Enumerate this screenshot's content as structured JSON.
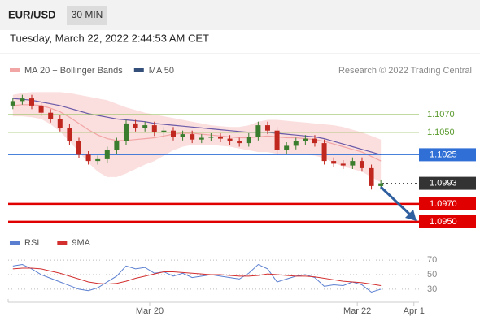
{
  "header": {
    "symbol": "EUR/USD",
    "interval": "30 MIN",
    "timestamp": "Tuesday, March 22, 2022 2:44:53 AM CET"
  },
  "chart_data": [
    {
      "type": "candlestick",
      "source": "Research © 2022 Trading Central",
      "up_color": "#3b7d2e",
      "down_color": "#c0271f",
      "xlim": [
        -0.5,
        43.9
      ],
      "ylim": [
        1.0939,
        1.1109
      ],
      "open": [
        1.108,
        1.1085,
        1.1088,
        1.108,
        1.1072,
        1.1065,
        1.1055,
        1.104,
        1.1025,
        1.1018,
        1.102,
        1.103,
        1.104,
        1.106,
        1.1055,
        1.1058,
        1.105,
        1.1052,
        1.1045,
        1.1048,
        1.1042,
        1.1044,
        1.1045,
        1.1043,
        1.104,
        1.1038,
        1.1045,
        1.1058,
        1.1052,
        1.103,
        1.1035,
        1.104,
        1.1043,
        1.1038,
        1.1018,
        1.1015,
        1.1013,
        1.1018,
        1.101,
        1.099
      ],
      "high": [
        1.1089,
        1.1092,
        1.1092,
        1.1084,
        1.1076,
        1.1069,
        1.1059,
        1.1044,
        1.1029,
        1.1024,
        1.1034,
        1.1044,
        1.1064,
        1.1064,
        1.1062,
        1.1062,
        1.1056,
        1.1056,
        1.1052,
        1.1052,
        1.1048,
        1.1049,
        1.1049,
        1.1047,
        1.1044,
        1.1049,
        1.1062,
        1.1062,
        1.1056,
        1.1039,
        1.1044,
        1.1047,
        1.1047,
        1.1042,
        1.1022,
        1.1019,
        1.1022,
        1.1022,
        1.1014,
        1.0997
      ],
      "low": [
        1.1076,
        1.1081,
        1.1076,
        1.1068,
        1.1061,
        1.1051,
        1.1036,
        1.1021,
        1.1014,
        1.1014,
        1.1016,
        1.1026,
        1.1036,
        1.1051,
        1.1051,
        1.1046,
        1.1046,
        1.1041,
        1.1041,
        1.1038,
        1.1038,
        1.104,
        1.1039,
        1.1036,
        1.1034,
        1.1034,
        1.1041,
        1.1048,
        1.1026,
        1.1026,
        1.1031,
        1.1036,
        1.1034,
        1.1014,
        1.1011,
        1.1009,
        1.1009,
        1.1006,
        1.0986,
        1.0986
      ],
      "close": [
        1.1085,
        1.1088,
        1.108,
        1.1072,
        1.1065,
        1.1055,
        1.104,
        1.1025,
        1.1018,
        1.102,
        1.103,
        1.104,
        1.106,
        1.1055,
        1.1058,
        1.105,
        1.1052,
        1.1045,
        1.1048,
        1.1042,
        1.1044,
        1.1045,
        1.1043,
        1.104,
        1.1038,
        1.1045,
        1.1058,
        1.1052,
        1.103,
        1.1035,
        1.104,
        1.1043,
        1.1038,
        1.1018,
        1.1015,
        1.1013,
        1.1018,
        1.101,
        1.099,
        1.0993
      ],
      "series": [
        {
          "name": "MA 20 + Bollinger Bands",
          "color": "#f2a5a5",
          "band_color": "#fbdede",
          "values": [
            1.108,
            1.1081,
            1.1081,
            1.108,
            1.1077,
            1.1073,
            1.1067,
            1.106,
            1.1053,
            1.1047,
            1.1043,
            1.1041,
            1.1041,
            1.1042,
            1.1043,
            1.1044,
            1.1046,
            1.1048,
            1.1049,
            1.1049,
            1.1048,
            1.1047,
            1.1046,
            1.1045,
            1.1044,
            1.1044,
            1.1045,
            1.1046,
            1.1045,
            1.1044,
            1.1044,
            1.1043,
            1.1042,
            1.104,
            1.1037,
            1.1034,
            1.1031,
            1.1028,
            1.1023,
            1.1018
          ],
          "upper": [
            1.1092,
            1.1094,
            1.1095,
            1.1095,
            1.1095,
            1.1095,
            1.1094,
            1.1092,
            1.109,
            1.1088,
            1.1086,
            1.1082,
            1.1078,
            1.1075,
            1.1072,
            1.107,
            1.1068,
            1.1066,
            1.1064,
            1.1062,
            1.106,
            1.1058,
            1.1057,
            1.1056,
            1.1056,
            1.1058,
            1.1062,
            1.1064,
            1.1064,
            1.1063,
            1.1062,
            1.1061,
            1.106,
            1.1059,
            1.1058,
            1.1056,
            1.1053,
            1.105,
            1.1046,
            1.1042
          ],
          "lower": [
            1.1068,
            1.1068,
            1.1067,
            1.1065,
            1.1059,
            1.1051,
            1.104,
            1.1028,
            1.1016,
            1.1006,
            1.1,
            1.1,
            1.1004,
            1.1009,
            1.1014,
            1.1018,
            1.1024,
            1.103,
            1.1034,
            1.1036,
            1.1036,
            1.1036,
            1.1035,
            1.1034,
            1.1032,
            1.103,
            1.1028,
            1.1028,
            1.1026,
            1.1025,
            1.1026,
            1.1025,
            1.1024,
            1.1021,
            1.1016,
            1.1012,
            1.1009,
            1.1006,
            1.1,
            1.0994
          ]
        },
        {
          "name": "MA 50",
          "color": "#6a5aa8",
          "legend_color": "#34507a",
          "values": [
            1.1088,
            1.1087,
            1.1086,
            1.1084,
            1.1082,
            1.108,
            1.1077,
            1.1074,
            1.1071,
            1.1069,
            1.1067,
            1.1065,
            1.1064,
            1.1063,
            1.1062,
            1.106,
            1.1059,
            1.1058,
            1.1057,
            1.1056,
            1.1055,
            1.1054,
            1.1053,
            1.1052,
            1.1051,
            1.105,
            1.105,
            1.105,
            1.1049,
            1.1048,
            1.1047,
            1.1046,
            1.1045,
            1.1043,
            1.104,
            1.1037,
            1.1034,
            1.1031,
            1.1028,
            1.1025
          ]
        }
      ],
      "levels": [
        {
          "value": 1.107,
          "label": "1.1070",
          "color": "#9cc46a",
          "style": "line",
          "badge": false
        },
        {
          "value": 1.105,
          "label": "1.1050",
          "color": "#9cc46a",
          "style": "line",
          "badge": false
        },
        {
          "value": 1.1025,
          "label": "1.1025",
          "color": "#2f6fd6",
          "style": "line",
          "badge": true
        },
        {
          "value": 1.0993,
          "label": "1.0993",
          "color": "#333333",
          "style": "dotted",
          "badge": true
        },
        {
          "value": 1.097,
          "label": "1.0970",
          "color": "#e10000",
          "style": "thick",
          "badge": true
        },
        {
          "value": 1.095,
          "label": "1.0950",
          "color": "#e10000",
          "style": "thick",
          "badge": true
        }
      ]
    },
    {
      "type": "line",
      "xlim": [
        -0.5,
        43.9
      ],
      "ylim": [
        12,
        87
      ],
      "yticks": [
        30,
        50,
        70
      ],
      "xticks": [
        {
          "value": 14.5,
          "label": "Mar 20"
        },
        {
          "value": 36.5,
          "label": "Mar 22"
        },
        {
          "value": 42.5,
          "label": "Apr 1"
        }
      ],
      "series": [
        {
          "name": "RSI",
          "color": "#5b7fd0",
          "values": [
            62,
            64,
            58,
            50,
            45,
            40,
            35,
            30,
            28,
            32,
            40,
            48,
            62,
            58,
            60,
            52,
            54,
            48,
            52,
            46,
            48,
            50,
            48,
            46,
            44,
            52,
            64,
            58,
            40,
            44,
            48,
            50,
            46,
            34,
            36,
            35,
            40,
            36,
            26,
            30
          ]
        },
        {
          "name": "9MA",
          "color": "#d32f2f",
          "values": [
            58,
            59,
            59,
            58,
            55,
            52,
            48,
            44,
            40,
            38,
            37,
            38,
            41,
            45,
            48,
            51,
            54,
            54,
            53,
            52,
            51,
            50,
            50,
            49,
            48,
            48,
            49,
            51,
            50,
            49,
            48,
            48,
            47,
            45,
            43,
            41,
            40,
            39,
            37,
            35
          ]
        }
      ]
    }
  ]
}
